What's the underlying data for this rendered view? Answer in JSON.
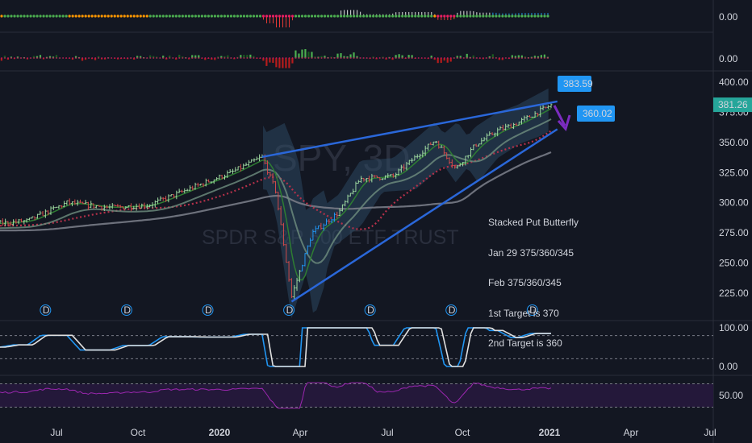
{
  "chart_data": [
    {
      "type": "bar",
      "title": "",
      "pane": "oscillator-1",
      "ytick_labels": [
        "0.00"
      ],
      "ylim": [
        -1,
        1
      ]
    },
    {
      "type": "bar",
      "title": "",
      "pane": "oscillator-2",
      "ytick_labels": [
        "0.00"
      ],
      "ylim": [
        -1,
        1
      ]
    },
    {
      "type": "line",
      "title": "",
      "pane": "price",
      "watermark": [
        "SPY, 3D",
        "SPDR S&P 500 ETF TRUST"
      ],
      "xtick_labels": [
        "Jul",
        "Oct",
        "2020",
        "Apr",
        "Jul",
        "Oct",
        "2021",
        "Apr",
        "Jul"
      ],
      "ytick_labels": [
        "400.00",
        "375.00",
        "350.00",
        "325.00",
        "300.00",
        "275.00",
        "250.00",
        "225.00"
      ],
      "ylim": [
        207,
        402
      ],
      "last_price": "381.26",
      "price_series_approx": {
        "x": [
          "2019-05-01",
          "2019-06-01",
          "2019-07-15",
          "2019-09-01",
          "2019-10-15",
          "2019-12-01",
          "2020-01-15",
          "2020-02-19",
          "2020-03-05",
          "2020-03-23",
          "2020-04-15",
          "2020-05-15",
          "2020-06-08",
          "2020-07-15",
          "2020-08-31",
          "2020-09-23",
          "2020-10-15",
          "2020-11-09",
          "2020-12-01",
          "2021-01-08"
        ],
        "values": [
          283,
          285,
          300,
          296,
          298,
          312,
          325,
          338,
          310,
          222,
          275,
          292,
          320,
          322,
          352,
          328,
          348,
          360,
          366,
          381
        ]
      },
      "annotations": {
        "price_callouts": [
          "383.59",
          "360.02"
        ],
        "dividend_marker": "D",
        "note_lines": [
          "Stacked Put Butterfly",
          "Jan 29 375/360/345",
          "Feb 375/360/345",
          "1st Target is 370",
          "2nd Target is 360"
        ]
      },
      "colors": {
        "background": "#131722",
        "up_bar": "#9ed9a0",
        "down_bar": "#d04a4a",
        "wedge_lines": "#2a67d9",
        "callout": "#2196f3",
        "arrow": "#7b2cbf",
        "price_label": "#26a69a",
        "sma_dotted": "#b5314a",
        "ma_gray": "#787b86",
        "cloud": "#2d4b66"
      }
    },
    {
      "type": "line",
      "title": "",
      "pane": "stochastic",
      "ytick_labels": [
        "100.00",
        "0.00"
      ],
      "ylim": [
        -10,
        110
      ]
    },
    {
      "type": "line",
      "title": "",
      "pane": "rsi",
      "ytick_labels": [
        "50.00"
      ],
      "ylim": [
        30,
        70
      ]
    }
  ]
}
